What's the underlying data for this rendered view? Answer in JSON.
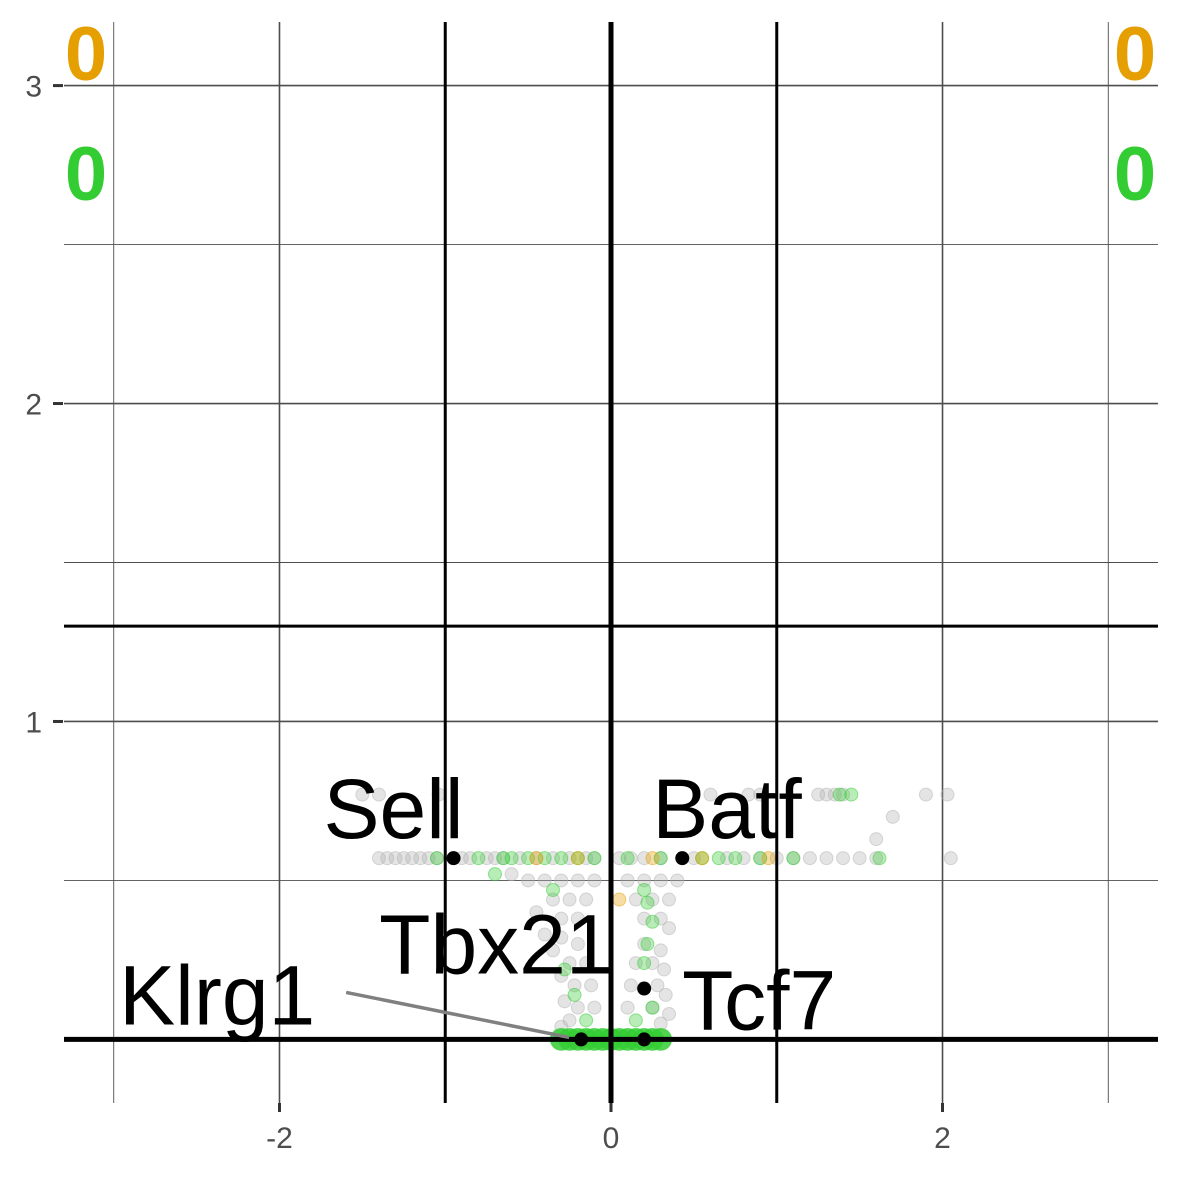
{
  "chart_data": {
    "type": "scatter",
    "title": "",
    "xlabel": "",
    "ylabel": "",
    "xlim": [
      -3.3,
      3.3
    ],
    "ylim": [
      -0.2,
      3.2
    ],
    "x_ticks": [
      {
        "value": -2,
        "label": "-2"
      },
      {
        "value": 0,
        "label": "0"
      },
      {
        "value": 2,
        "label": "2"
      }
    ],
    "y_ticks": [
      {
        "value": 1,
        "label": "1"
      },
      {
        "value": 2,
        "label": "2"
      },
      {
        "value": 3,
        "label": "3"
      }
    ],
    "grid": true,
    "threshold_lines": {
      "x": [
        -1,
        1
      ],
      "y": 1.3
    },
    "axis_lines": {
      "x": 0,
      "y": 0
    },
    "colors": {
      "gray": "#b3b3b3",
      "green": "#33cc33",
      "orange": "#e69f00",
      "labeled": "#000000"
    },
    "counts": [
      {
        "text": "0",
        "color": "#e69f00",
        "corner": "top-left"
      },
      {
        "text": "0",
        "color": "#e69f00",
        "corner": "top-right"
      },
      {
        "text": "0",
        "color": "#33cc33",
        "corner": "upper-left"
      },
      {
        "text": "0",
        "color": "#33cc33",
        "corner": "upper-right"
      }
    ],
    "labeled_genes": [
      {
        "name": "Sell",
        "x": -0.95,
        "y": 0.57
      },
      {
        "name": "Batf",
        "x": 0.43,
        "y": 0.57
      },
      {
        "name": "Tbx21",
        "x": 0.2,
        "y": 0.16
      },
      {
        "name": "Tcf7",
        "x": 0.2,
        "y": 0.0
      },
      {
        "name": "Klrg1",
        "x": -0.18,
        "y": 0.0
      }
    ],
    "series": [
      {
        "color": "gray",
        "points": [
          [
            -1.5,
            0.77
          ],
          [
            -1.4,
            0.77
          ],
          [
            -1.04,
            0.77
          ],
          [
            0.6,
            0.77
          ],
          [
            0.83,
            0.77
          ],
          [
            0.9,
            0.77
          ],
          [
            1.25,
            0.77
          ],
          [
            1.3,
            0.77
          ],
          [
            1.35,
            0.77
          ],
          [
            1.4,
            0.77
          ],
          [
            1.9,
            0.77
          ],
          [
            2.03,
            0.77
          ],
          [
            1.7,
            0.7
          ],
          [
            1.6,
            0.63
          ],
          [
            -1.4,
            0.57
          ],
          [
            -1.35,
            0.57
          ],
          [
            -1.3,
            0.57
          ],
          [
            -1.25,
            0.57
          ],
          [
            -1.2,
            0.57
          ],
          [
            -1.15,
            0.57
          ],
          [
            -1.1,
            0.57
          ],
          [
            -1.05,
            0.57
          ],
          [
            -0.9,
            0.57
          ],
          [
            -0.85,
            0.57
          ],
          [
            -0.75,
            0.57
          ],
          [
            -0.7,
            0.57
          ],
          [
            -0.65,
            0.57
          ],
          [
            -0.55,
            0.57
          ],
          [
            -0.45,
            0.57
          ],
          [
            -0.35,
            0.57
          ],
          [
            -0.25,
            0.57
          ],
          [
            -0.15,
            0.57
          ],
          [
            -0.1,
            0.57
          ],
          [
            0.05,
            0.57
          ],
          [
            0.12,
            0.57
          ],
          [
            0.2,
            0.57
          ],
          [
            0.3,
            0.57
          ],
          [
            0.5,
            0.57
          ],
          [
            0.7,
            0.57
          ],
          [
            0.8,
            0.57
          ],
          [
            0.9,
            0.57
          ],
          [
            1.0,
            0.57
          ],
          [
            1.1,
            0.57
          ],
          [
            1.2,
            0.57
          ],
          [
            1.3,
            0.57
          ],
          [
            1.4,
            0.57
          ],
          [
            1.5,
            0.57
          ],
          [
            1.6,
            0.57
          ],
          [
            2.05,
            0.57
          ],
          [
            -0.6,
            0.52
          ],
          [
            -0.5,
            0.5
          ],
          [
            -0.4,
            0.5
          ],
          [
            -0.3,
            0.5
          ],
          [
            -0.2,
            0.5
          ],
          [
            -0.1,
            0.5
          ],
          [
            0.1,
            0.5
          ],
          [
            0.2,
            0.5
          ],
          [
            0.3,
            0.5
          ],
          [
            0.4,
            0.5
          ],
          [
            -0.35,
            0.44
          ],
          [
            -0.25,
            0.44
          ],
          [
            -0.15,
            0.44
          ],
          [
            0.15,
            0.44
          ],
          [
            0.25,
            0.44
          ],
          [
            0.35,
            0.44
          ],
          [
            -0.45,
            0.4
          ],
          [
            -0.3,
            0.38
          ],
          [
            -0.2,
            0.38
          ],
          [
            0.2,
            0.38
          ],
          [
            0.3,
            0.38
          ],
          [
            0.35,
            0.35
          ],
          [
            -0.4,
            0.33
          ],
          [
            -0.3,
            0.32
          ],
          [
            -0.2,
            0.3
          ],
          [
            0.2,
            0.3
          ],
          [
            0.3,
            0.28
          ],
          [
            -0.35,
            0.28
          ],
          [
            -0.25,
            0.24
          ],
          [
            -0.15,
            0.24
          ],
          [
            0.15,
            0.24
          ],
          [
            0.25,
            0.24
          ],
          [
            0.32,
            0.22
          ],
          [
            -0.3,
            0.2
          ],
          [
            -0.22,
            0.17
          ],
          [
            -0.12,
            0.17
          ],
          [
            0.12,
            0.17
          ],
          [
            0.28,
            0.17
          ],
          [
            0.33,
            0.14
          ],
          [
            -0.28,
            0.12
          ],
          [
            -0.2,
            0.1
          ],
          [
            -0.1,
            0.1
          ],
          [
            0.1,
            0.1
          ],
          [
            0.25,
            0.1
          ],
          [
            0.35,
            0.08
          ],
          [
            -0.25,
            0.06
          ],
          [
            0.3,
            0.05
          ],
          [
            -0.3,
            0.04
          ]
        ]
      },
      {
        "color": "green",
        "points": [
          [
            1.45,
            0.77
          ],
          [
            1.38,
            0.77
          ],
          [
            -1.05,
            0.57
          ],
          [
            -0.95,
            0.57
          ],
          [
            -0.8,
            0.57
          ],
          [
            -0.65,
            0.57
          ],
          [
            -0.6,
            0.57
          ],
          [
            -0.5,
            0.57
          ],
          [
            -0.4,
            0.57
          ],
          [
            -0.3,
            0.57
          ],
          [
            -0.2,
            0.57
          ],
          [
            -0.1,
            0.57
          ],
          [
            0.1,
            0.57
          ],
          [
            0.3,
            0.57
          ],
          [
            0.55,
            0.57
          ],
          [
            0.65,
            0.57
          ],
          [
            0.75,
            0.57
          ],
          [
            0.9,
            0.57
          ],
          [
            1.1,
            0.57
          ],
          [
            1.62,
            0.57
          ],
          [
            -0.7,
            0.52
          ],
          [
            -0.35,
            0.47
          ],
          [
            0.2,
            0.47
          ],
          [
            0.22,
            0.43
          ],
          [
            0.25,
            0.37
          ],
          [
            0.22,
            0.3
          ],
          [
            0.2,
            0.24
          ],
          [
            -0.28,
            0.22
          ],
          [
            -0.22,
            0.14
          ],
          [
            0.25,
            0.1
          ],
          [
            -0.15,
            0.06
          ],
          [
            0.15,
            0.06
          ],
          [
            -0.3,
            0.0
          ],
          [
            -0.25,
            0.0
          ],
          [
            -0.2,
            0.0
          ],
          [
            -0.15,
            0.0
          ],
          [
            -0.1,
            0.0
          ],
          [
            -0.05,
            0.0
          ],
          [
            0.0,
            0.0
          ],
          [
            0.05,
            0.0
          ],
          [
            0.1,
            0.0
          ],
          [
            0.15,
            0.0
          ],
          [
            0.2,
            0.0
          ],
          [
            0.25,
            0.0
          ],
          [
            0.3,
            0.0
          ]
        ]
      },
      {
        "color": "orange",
        "points": [
          [
            -0.45,
            0.57
          ],
          [
            -0.2,
            0.57
          ],
          [
            0.25,
            0.57
          ],
          [
            0.55,
            0.57
          ],
          [
            0.95,
            0.57
          ],
          [
            0.05,
            0.44
          ]
        ]
      }
    ]
  }
}
